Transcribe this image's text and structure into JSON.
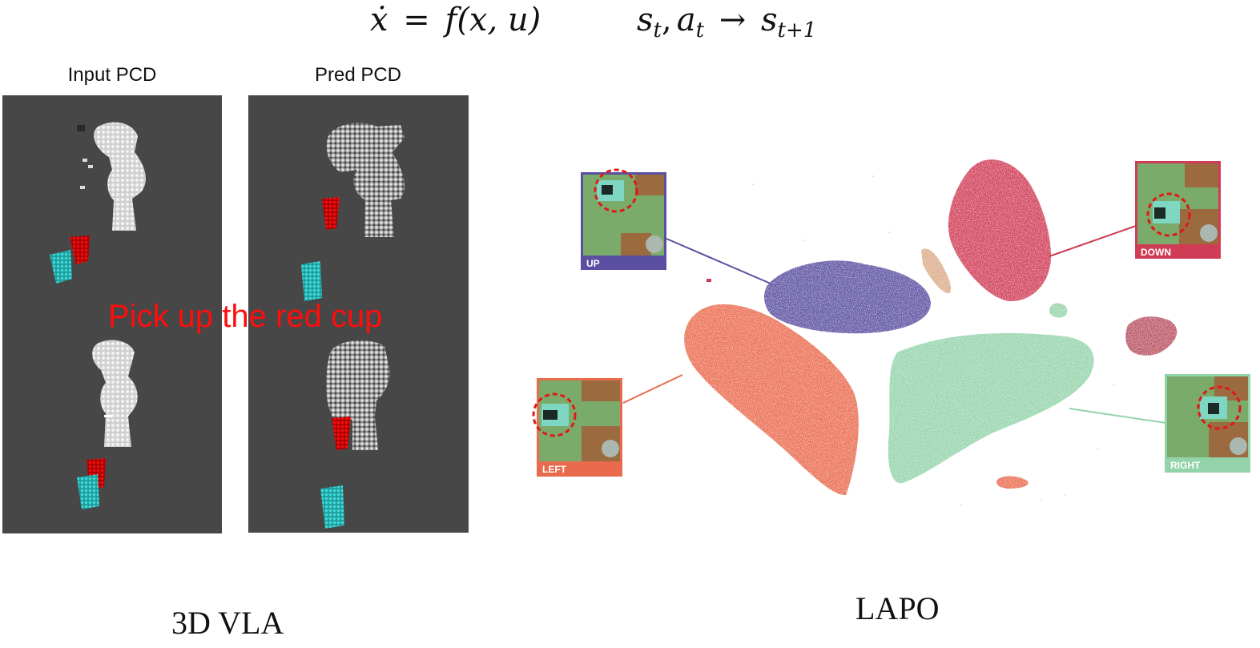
{
  "equations": {
    "dynamics": {
      "lhs": "ẋ",
      "op": "=",
      "rhs": "f(x, u)"
    },
    "transition": {
      "state": "s",
      "action": "a",
      "t": "t",
      "t1": "t+1",
      "sep": ",",
      "arrow": "→"
    }
  },
  "vla": {
    "input_title": "Input PCD",
    "pred_title": "Pred PCD",
    "instruction": "Pick up the red cup",
    "caption": "3D VLA"
  },
  "lapo": {
    "caption": "LAPO",
    "clusters": [
      {
        "label": "UP",
        "color": "#5a4fa0"
      },
      {
        "label": "DOWN",
        "color": "#d03b55"
      },
      {
        "label": "LEFT",
        "color": "#ea6a4e"
      },
      {
        "label": "RIGHT",
        "color": "#93d3aa"
      }
    ]
  }
}
